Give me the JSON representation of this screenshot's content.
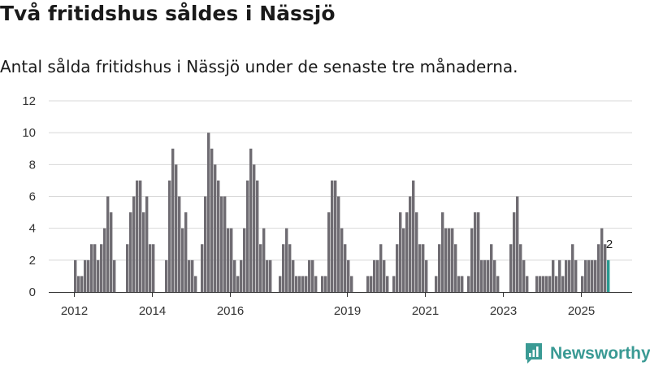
{
  "header": {
    "title": "Två fritidshus såldes i Nässjö",
    "subtitle": "Antal sålda fritidshus i Nässjö under de senaste tre månaderna."
  },
  "brand": {
    "name": "Newsworthy"
  },
  "colors": {
    "bar": "#6f6c72",
    "highlight": "#2a9a90",
    "grid": "#d8d8d8",
    "axis": "#333333",
    "brand": "#3a9a94"
  },
  "chart_data": {
    "type": "bar",
    "title": "Två fritidshus såldes i Nässjö",
    "xlabel": "",
    "ylabel": "",
    "ylim": [
      0,
      12
    ],
    "yticks": [
      0,
      2,
      4,
      6,
      8,
      10,
      12
    ],
    "xticks": [
      {
        "label": "2012",
        "index": 0
      },
      {
        "label": "2014",
        "index": 24
      },
      {
        "label": "2016",
        "index": 48
      },
      {
        "label": "2019",
        "index": 84
      },
      {
        "label": "2021",
        "index": 108
      },
      {
        "label": "2023",
        "index": 132
      },
      {
        "label": "2025",
        "index": 156
      }
    ],
    "start": "2012-01",
    "values": [
      2,
      1,
      1,
      2,
      2,
      3,
      3,
      2,
      3,
      4,
      6,
      5,
      2,
      0,
      0,
      0,
      3,
      5,
      6,
      7,
      7,
      5,
      6,
      3,
      3,
      0,
      0,
      0,
      2,
      7,
      9,
      8,
      6,
      4,
      5,
      2,
      2,
      1,
      0,
      3,
      6,
      10,
      9,
      8,
      7,
      6,
      6,
      4,
      4,
      2,
      1,
      2,
      4,
      7,
      9,
      8,
      7,
      3,
      4,
      2,
      2,
      0,
      0,
      1,
      3,
      4,
      3,
      2,
      1,
      1,
      1,
      1,
      2,
      2,
      1,
      0,
      1,
      1,
      5,
      7,
      7,
      6,
      4,
      3,
      2,
      1,
      0,
      0,
      0,
      0,
      1,
      1,
      2,
      2,
      3,
      2,
      1,
      0,
      1,
      3,
      5,
      4,
      5,
      6,
      7,
      5,
      3,
      3,
      2,
      0,
      0,
      1,
      3,
      5,
      4,
      4,
      4,
      3,
      1,
      1,
      0,
      1,
      4,
      5,
      5,
      2,
      2,
      2,
      3,
      2,
      1,
      0,
      0,
      0,
      3,
      5,
      6,
      3,
      2,
      1,
      0,
      0,
      1,
      1,
      1,
      1,
      1,
      2,
      1,
      2,
      1,
      2,
      2,
      3,
      2,
      0,
      1,
      2,
      2,
      2,
      2,
      3,
      4,
      3,
      2
    ],
    "highlight_index": 164,
    "highlight_label": "2"
  }
}
